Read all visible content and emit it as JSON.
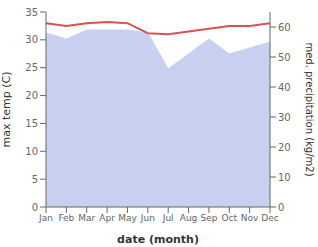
{
  "chart_data": {
    "type": "line",
    "xlabel": "date (month)",
    "ylabel": "max temp (C)",
    "y2label": "med. precipitation (kg/m2)",
    "categories": [
      "Jan",
      "Feb",
      "Mar",
      "Apr",
      "May",
      "Jun",
      "Jul",
      "Aug",
      "Sep",
      "Oct",
      "Nov",
      "Dec"
    ],
    "series": [
      {
        "type": "area",
        "axis": "y2",
        "color": "#c8d0f0",
        "values": [
          58.0,
          56.0,
          59.0,
          59.0,
          59.0,
          58.0,
          46.0,
          51.0,
          56.0,
          51.0,
          53.0,
          55.0
        ]
      },
      {
        "type": "line",
        "color": "#d9534f",
        "values": [
          33.0,
          32.5,
          33.0,
          33.2,
          33.0,
          31.2,
          31.0,
          31.5,
          32.0,
          32.5,
          32.5,
          33.0
        ]
      }
    ],
    "ylim": [
      0,
      35
    ],
    "yticks": [
      0,
      5,
      10,
      15,
      20,
      25,
      30,
      35
    ],
    "y2lim": [
      0,
      65
    ],
    "y2ticks": [
      0,
      10,
      20,
      30,
      40,
      50,
      60
    ],
    "grid": false
  }
}
